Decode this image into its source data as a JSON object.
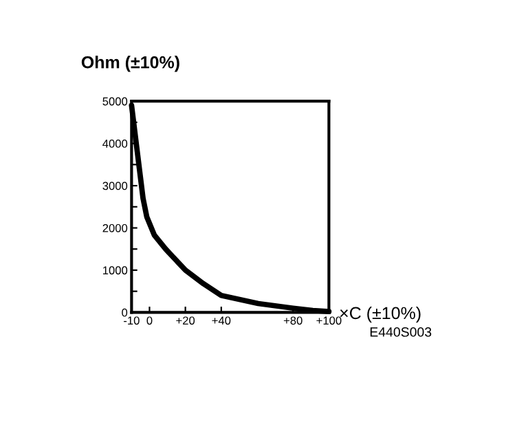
{
  "chart_data": {
    "type": "line",
    "ylabel": "Ohm (±10%)",
    "xlabel": "×C (±10%)",
    "annotations": [
      "E440S003"
    ],
    "series": [
      {
        "color": "#000000",
        "x": [
          -10,
          -6.8,
          -3.6,
          -1.5,
          2.7,
          9,
          20,
          30,
          40,
          60.6,
          80,
          91,
          100
        ],
        "values": [
          4900,
          3800,
          2700,
          2260,
          1830,
          1500,
          1000,
          680,
          400,
          210,
          100,
          45,
          20
        ]
      }
    ],
    "xlim": [
      -10,
      100
    ],
    "xticks": [
      {
        "value": -10,
        "label": "-10"
      },
      {
        "value": 0,
        "label": "0"
      },
      {
        "value": 20,
        "label": "+20"
      },
      {
        "value": 40,
        "label": "+40"
      },
      {
        "value": 80,
        "label": "+80"
      },
      {
        "value": 100,
        "label": "+100"
      }
    ],
    "ylim": [
      0,
      5000
    ],
    "yticks": [
      0,
      {
        "value": 500,
        "label": null
      },
      1000,
      {
        "value": 1500,
        "label": null
      },
      2000,
      {
        "value": 2500,
        "label": null
      },
      3000,
      {
        "value": 3500,
        "label": null
      },
      4000,
      {
        "value": 4500,
        "label": null
      },
      5000
    ],
    "grid": false,
    "legend": false,
    "marker": "none",
    "line_style": "solid"
  }
}
